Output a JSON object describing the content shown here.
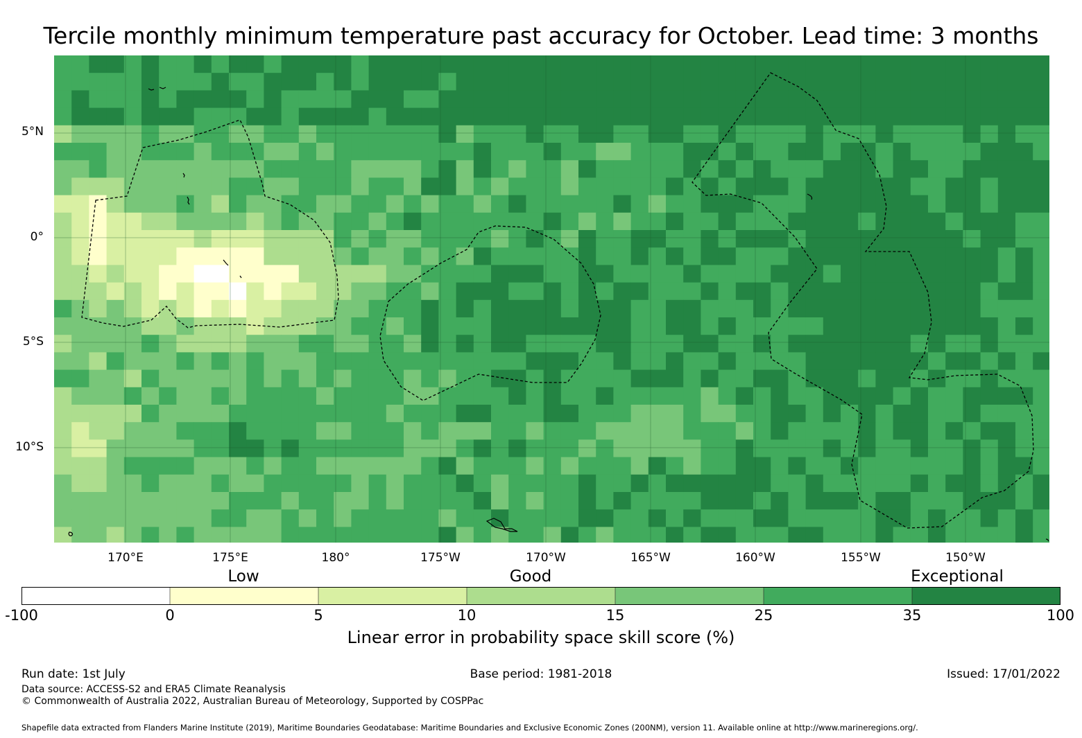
{
  "title": "Tercile monthly minimum temperature past accuracy for October. Lead time: 3 months",
  "map": {
    "lat_labels": [
      "5°N",
      "0°",
      "5°S",
      "10°S"
    ],
    "lon_labels": [
      "170°E",
      "175°E",
      "180°",
      "175°W",
      "170°W",
      "165°W",
      "160°W",
      "155°W",
      "150°W"
    ],
    "extent": {
      "lon_west": "166.6°E",
      "lon_east": "146.7°W",
      "lat_north": "8.7°N",
      "lat_south": "14.5°S"
    },
    "grid_cell_degrees": 0.833,
    "colors_by_category": [
      "#ffffff",
      "#ffffcc",
      "#d9f0a3",
      "#addd8e",
      "#78c679",
      "#41ab5d",
      "#238443"
    ],
    "regions_note_shown": false
  },
  "category_labels": {
    "low": "Low",
    "good": "Good",
    "exceptional": "Exceptional"
  },
  "colorbar": {
    "ticks": [
      "-100",
      "0",
      "5",
      "10",
      "15",
      "25",
      "35",
      "100"
    ],
    "colors": [
      "#ffffff",
      "#ffffcc",
      "#d9f0a3",
      "#addd8e",
      "#78c679",
      "#41ab5d",
      "#238443"
    ],
    "title": "Linear error in probability space skill score (%)"
  },
  "footer": {
    "run_date": "Run date: 1st July",
    "base_period": "Base period: 1981-2018",
    "issued": "Issued: 17/01/2022",
    "data_source": "Data source: ACCESS-S2 and ERA5 Climate Reanalysis",
    "copyright": "© Commonwealth of Australia 2022, Australian Bureau of Meteorology, Supported by COSPPac",
    "shapefile": "Shapefile data extracted from Flanders Marine Institute (2019), Maritime Boundaries Geodatabase: Maritime Boundaries and Exclusive Economic Zones (200NM), version 11. Available online at http://www.marineregions.org/."
  }
}
